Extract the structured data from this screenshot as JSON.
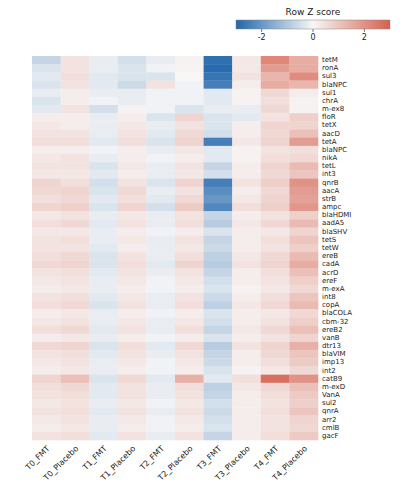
{
  "chart_data": {
    "type": "heatmap",
    "rows": [
      "tetM",
      "ronA",
      "sul3",
      "blaNPC",
      "sul1",
      "chrA",
      "m-ex8",
      "floR",
      "tetX",
      "aacD",
      "tetA",
      "blaNPC",
      "nikA",
      "tetL",
      "int3",
      "qnrB",
      "aacA",
      "strB",
      "ampc",
      "blaHDMI",
      "aadA5",
      "blaSHV",
      "tetS",
      "tetW",
      "ereB",
      "cadA",
      "acrD",
      "ereF",
      "m-exA",
      "int8",
      "copA",
      "blaCOLA",
      "cbm-32",
      "ereB2",
      "vanB",
      "dtr13",
      "blaVIM",
      "imp13",
      "int2",
      "catB9",
      "m-exD",
      "VanA",
      "sul2",
      "qnrA",
      "arr2",
      "cmlB",
      "gacF"
    ],
    "categories": [
      "T0_FMT",
      "T0_Placebo",
      "T1_FMT",
      "T1_Placebo",
      "T2_FMT",
      "T2_Placebo",
      "T3_FMT",
      "T3_Placebo",
      "T4_FMT",
      "T4_Placebo"
    ],
    "values": [
      [
        -0.7,
        0.4,
        -0.2,
        -0.5,
        -0.2,
        0.1,
        -2.8,
        0.3,
        2.2,
        1.5
      ],
      [
        -0.4,
        0.4,
        -0.2,
        -0.4,
        -0.1,
        0.1,
        -2.9,
        0.3,
        1.8,
        1.5
      ],
      [
        -0.3,
        0.5,
        -0.3,
        -0.4,
        -0.4,
        0.0,
        -2.7,
        0.4,
        1.3,
        2.1
      ],
      [
        -0.4,
        0.4,
        -0.3,
        -0.6,
        0.4,
        -0.1,
        -2.5,
        0.2,
        1.5,
        1.3
      ],
      [
        -0.2,
        0.2,
        -0.2,
        -0.2,
        -0.1,
        -0.1,
        -0.3,
        0.1,
        0.6,
        0.2
      ],
      [
        -0.4,
        0.2,
        -0.1,
        -0.2,
        -0.1,
        -0.1,
        -0.3,
        0.1,
        0.5,
        0.1
      ],
      [
        -0.3,
        0.4,
        -0.5,
        0.1,
        -0.1,
        -0.4,
        -0.2,
        -0.2,
        0.6,
        0.1
      ],
      [
        0.2,
        0.2,
        -0.2,
        0.2,
        -0.4,
        0.7,
        -0.4,
        -0.3,
        0.4,
        0.8
      ],
      [
        0.3,
        0.2,
        -0.2,
        0.3,
        -0.2,
        0.4,
        -0.4,
        0.2,
        0.7,
        0.7
      ],
      [
        0.4,
        0.4,
        -0.2,
        0.4,
        -0.3,
        0.6,
        -0.5,
        0.2,
        0.6,
        1.1
      ],
      [
        0.5,
        0.5,
        -0.3,
        0.5,
        -0.4,
        0.7,
        -2.5,
        0.3,
        0.7,
        1.8
      ],
      [
        0.2,
        0.2,
        -0.1,
        0.2,
        -0.2,
        0.3,
        -0.3,
        0.1,
        0.4,
        0.5
      ],
      [
        0.3,
        0.4,
        -0.2,
        0.2,
        -0.1,
        0.2,
        -0.3,
        0.1,
        0.5,
        0.6
      ],
      [
        0.4,
        0.4,
        -0.4,
        0.3,
        -0.2,
        0.4,
        -0.7,
        0.2,
        0.7,
        1.2
      ],
      [
        0.3,
        0.3,
        -0.3,
        0.2,
        -0.2,
        0.3,
        -0.5,
        0.2,
        0.6,
        1.0
      ],
      [
        0.7,
        0.5,
        -0.5,
        0.4,
        -0.4,
        0.7,
        -2.5,
        0.4,
        0.8,
        2.0
      ],
      [
        0.6,
        0.7,
        -0.4,
        0.6,
        -0.2,
        0.4,
        -2.2,
        0.2,
        0.6,
        1.8
      ],
      [
        0.5,
        0.6,
        -0.3,
        0.5,
        -0.3,
        0.6,
        -2.0,
        0.3,
        0.7,
        1.7
      ],
      [
        0.7,
        0.8,
        -0.4,
        0.7,
        -0.5,
        0.9,
        -2.3,
        0.5,
        0.8,
        1.9
      ],
      [
        0.3,
        0.4,
        -0.2,
        0.3,
        -0.2,
        0.4,
        -0.7,
        0.2,
        0.4,
        0.8
      ],
      [
        0.5,
        0.6,
        -0.3,
        0.4,
        -0.2,
        0.5,
        -0.9,
        0.3,
        0.6,
        1.2
      ],
      [
        0.3,
        0.3,
        -0.2,
        0.2,
        -0.1,
        0.2,
        -0.4,
        0.2,
        0.3,
        0.7
      ],
      [
        0.4,
        0.5,
        -0.2,
        0.3,
        -0.2,
        0.4,
        -0.7,
        0.2,
        0.5,
        1.0
      ],
      [
        0.4,
        0.4,
        -0.3,
        0.2,
        -0.2,
        0.3,
        -0.6,
        0.2,
        0.4,
        0.8
      ],
      [
        0.5,
        0.6,
        -0.4,
        0.4,
        -0.2,
        0.5,
        -0.8,
        0.3,
        0.6,
        1.2
      ],
      [
        0.6,
        0.7,
        -0.4,
        0.5,
        -0.3,
        0.7,
        -0.9,
        0.4,
        0.7,
        1.5
      ],
      [
        0.4,
        0.5,
        -0.3,
        0.4,
        -0.2,
        0.4,
        -0.7,
        0.2,
        0.5,
        1.1
      ],
      [
        0.3,
        0.4,
        -0.2,
        0.3,
        -0.1,
        0.3,
        -0.5,
        0.2,
        0.4,
        0.8
      ],
      [
        0.2,
        0.3,
        -0.2,
        0.2,
        -0.1,
        0.2,
        -0.4,
        0.1,
        0.3,
        0.6
      ],
      [
        0.4,
        0.5,
        -0.3,
        0.3,
        -0.2,
        0.4,
        -0.6,
        0.2,
        0.5,
        1.0
      ],
      [
        0.5,
        0.6,
        -0.4,
        0.4,
        -0.2,
        0.5,
        -0.8,
        0.3,
        0.6,
        1.2
      ],
      [
        0.2,
        0.3,
        -0.2,
        0.2,
        -0.1,
        0.2,
        -0.4,
        0.2,
        0.3,
        0.6
      ],
      [
        0.3,
        0.4,
        -0.2,
        0.3,
        -0.2,
        0.3,
        -0.5,
        0.2,
        0.4,
        0.8
      ],
      [
        0.5,
        0.6,
        -0.3,
        0.4,
        -0.2,
        0.5,
        -0.7,
        0.3,
        0.6,
        1.1
      ],
      [
        0.2,
        0.3,
        -0.2,
        0.2,
        -0.1,
        0.2,
        -0.4,
        0.2,
        0.4,
        0.7
      ],
      [
        0.6,
        0.7,
        -0.4,
        0.5,
        -0.3,
        0.6,
        -0.9,
        0.4,
        0.7,
        1.4
      ],
      [
        0.4,
        0.5,
        -0.3,
        0.4,
        -0.2,
        0.4,
        -0.7,
        0.2,
        0.6,
        1.0
      ],
      [
        0.3,
        0.4,
        -0.2,
        0.3,
        -0.1,
        0.3,
        -0.6,
        0.2,
        0.5,
        0.9
      ],
      [
        0.2,
        0.3,
        -0.2,
        0.2,
        -0.1,
        0.2,
        -0.4,
        0.1,
        0.3,
        0.6
      ],
      [
        0.7,
        1.1,
        -0.4,
        0.6,
        -0.3,
        1.4,
        -0.3,
        0.5,
        2.7,
        2.0
      ],
      [
        0.5,
        0.6,
        -0.3,
        0.4,
        -0.2,
        0.5,
        -0.8,
        0.3,
        0.6,
        1.1
      ],
      [
        0.4,
        0.5,
        -0.3,
        0.4,
        -0.2,
        0.4,
        -0.7,
        0.2,
        0.5,
        0.9
      ],
      [
        0.3,
        0.4,
        -0.2,
        0.3,
        -0.1,
        0.3,
        -0.5,
        0.2,
        0.4,
        0.8
      ],
      [
        0.4,
        0.5,
        -0.3,
        0.4,
        -0.2,
        0.4,
        -0.6,
        0.2,
        0.5,
        1.0
      ],
      [
        0.3,
        0.4,
        -0.2,
        0.3,
        -0.1,
        0.3,
        -0.5,
        0.2,
        0.4,
        0.7
      ],
      [
        0.2,
        0.3,
        -0.2,
        0.2,
        -0.1,
        0.2,
        -0.4,
        0.2,
        0.4,
        0.6
      ],
      [
        0.4,
        0.5,
        -0.3,
        0.4,
        -0.2,
        0.4,
        -0.7,
        0.2,
        0.5,
        0.9
      ]
    ],
    "colorbar_title": "Row Z score",
    "colorbar_range": [
      -3,
      3
    ],
    "colorbar_ticks": [
      -2,
      0,
      2
    ],
    "color_scale": [
      "#2166ac",
      "#f7f7f7",
      "#d6604d"
    ]
  }
}
